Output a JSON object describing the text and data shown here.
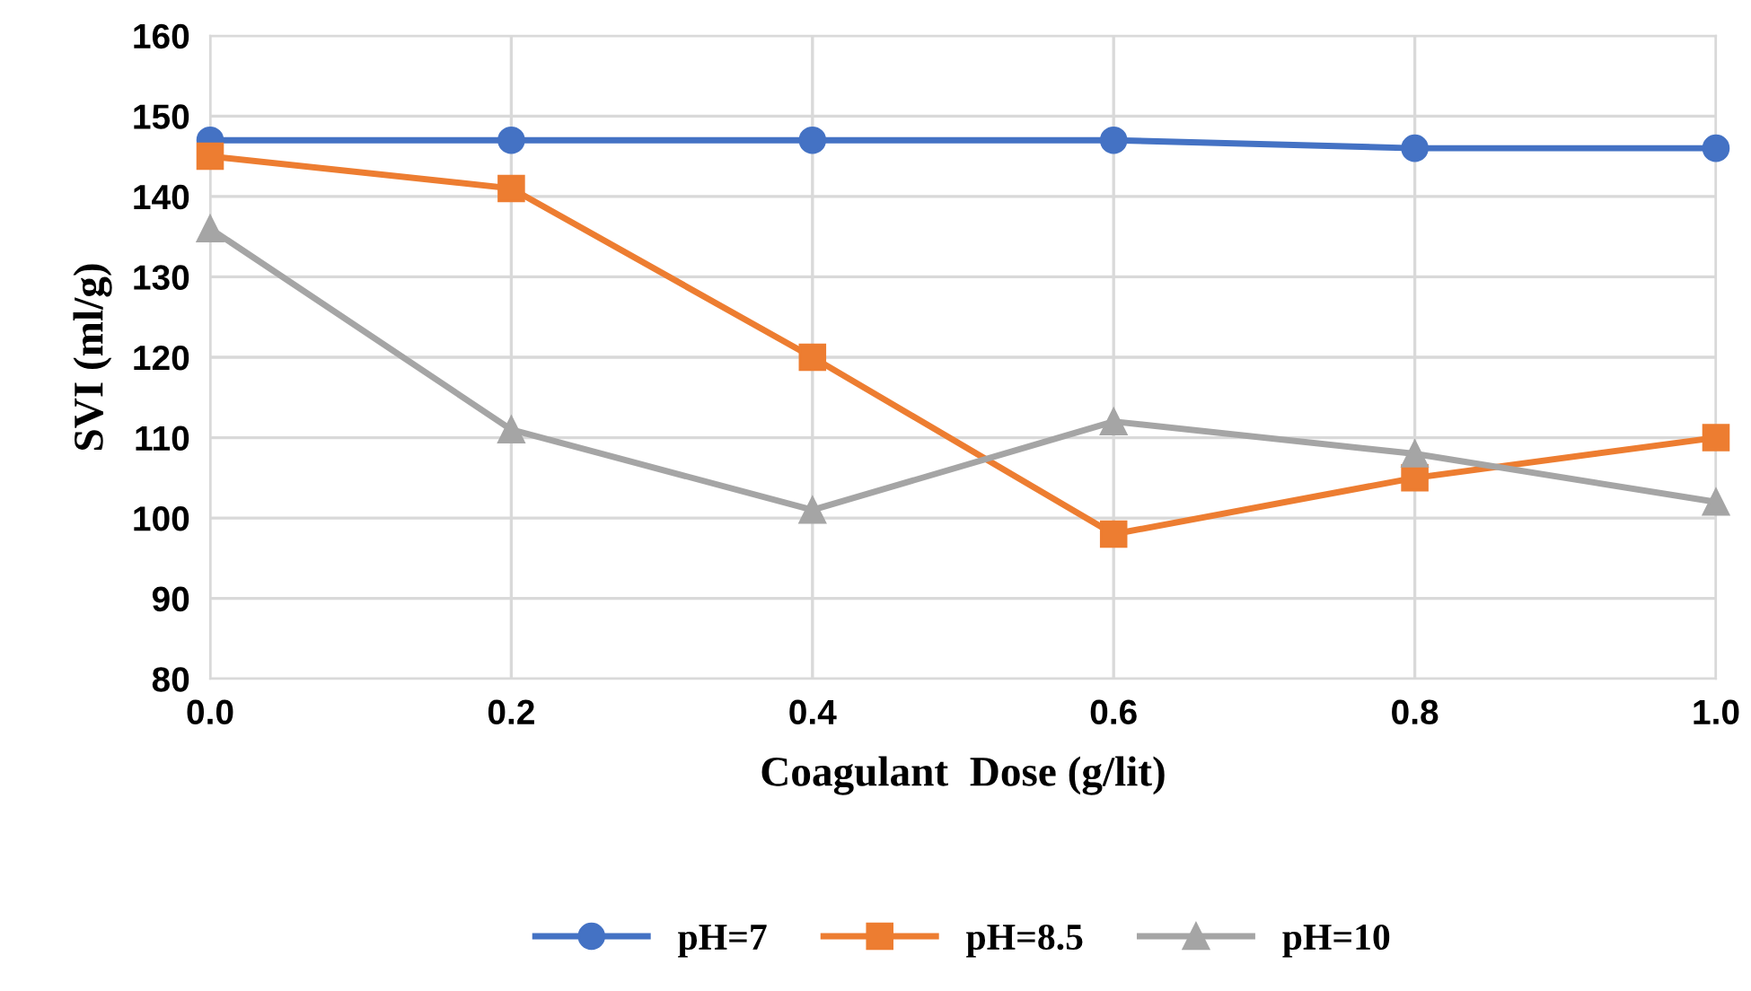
{
  "chart_data": {
    "type": "line",
    "xlabel": "Coagulant  Dose (g/lit)",
    "ylabel": "SVI (ml/g)",
    "x": [
      0.0,
      0.2,
      0.4,
      0.6,
      0.8,
      1.0
    ],
    "series": [
      {
        "name": "pH=7",
        "color": "#4472c4",
        "marker": "circle",
        "values": [
          147,
          147,
          147,
          147,
          146,
          146
        ]
      },
      {
        "name": "pH=8.5",
        "color": "#ed7d31",
        "marker": "square",
        "values": [
          145,
          141,
          120,
          98,
          105,
          110
        ]
      },
      {
        "name": "pH=10",
        "color": "#a5a5a5",
        "marker": "triangle",
        "values": [
          136,
          111,
          101,
          112,
          108,
          102
        ]
      }
    ],
    "xlim": [
      0.0,
      1.0
    ],
    "xticks": [
      {
        "value": 0.0,
        "label": "0.0"
      },
      {
        "value": 0.2,
        "label": "0.2"
      },
      {
        "value": 0.4,
        "label": "0.4"
      },
      {
        "value": 0.6,
        "label": "0.6"
      },
      {
        "value": 0.8,
        "label": "0.8"
      },
      {
        "value": 1.0,
        "label": "1.0"
      }
    ],
    "ylim": [
      80,
      160
    ],
    "yticks": [
      80,
      90,
      100,
      110,
      120,
      130,
      140,
      150,
      160
    ],
    "grid": true,
    "legend": "bottom",
    "line_style": "solid"
  }
}
